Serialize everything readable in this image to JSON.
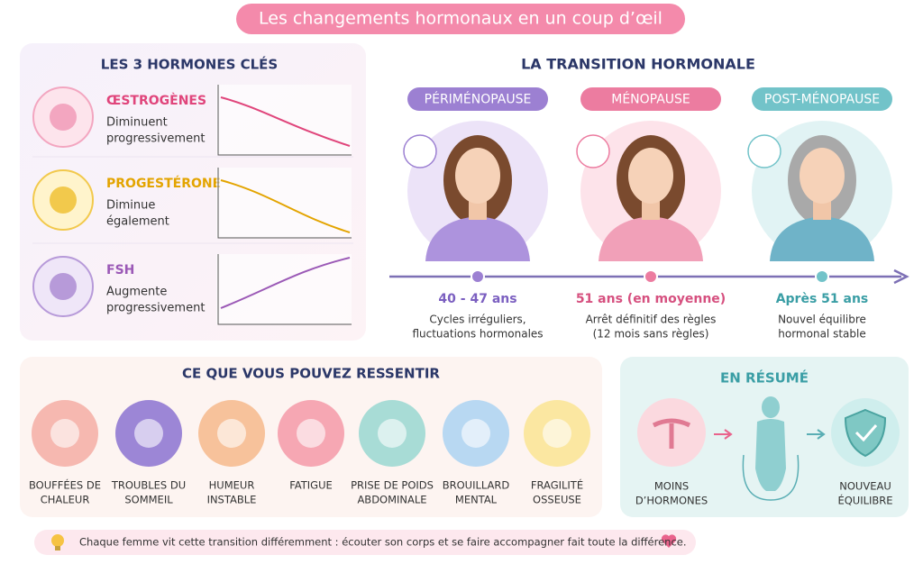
{
  "title": "Les changements hormonaux en un coup d’œil",
  "hormones": {
    "title": "LES 3 HORMONES CLÉS",
    "items": [
      {
        "name": "ŒSTROGÈNES",
        "description": [
          "Diminuent",
          "progressivement"
        ]
      },
      {
        "name": "PROGESTÉRONE",
        "description": [
          "Diminue",
          "également"
        ]
      },
      {
        "name": "FSH",
        "description": [
          "Augmente",
          "progressivement"
        ]
      }
    ]
  },
  "transition": {
    "title": "LA TRANSITION HORMONALE",
    "stages": [
      {
        "label": "PÉRIMÉNOPAUSE",
        "age": "40 - 47 ans",
        "description": [
          "Cycles irréguliers,",
          "fluctuations hormonales"
        ]
      },
      {
        "label": "MÉNOPAUSE",
        "age": "51 ans (en moyenne)",
        "description": [
          "Arrêt définitif des règles",
          "(12 mois sans règles)"
        ]
      },
      {
        "label": "POST-MÉNOPAUSE",
        "age": "Après 51 ans",
        "description": [
          "Nouvel équilibre",
          "hormonal stable"
        ]
      }
    ]
  },
  "symptoms": {
    "title": "CE QUE VOUS POUVEZ RESSENTIR",
    "items": [
      [
        "BOUFFÉES DE",
        "CHALEUR"
      ],
      [
        "TROUBLES DU",
        "SOMMEIL"
      ],
      [
        "HUMEUR",
        "INSTABLE"
      ],
      [
        "FATIGUE"
      ],
      [
        "PRISE DE POIDS",
        "ABDOMINALE"
      ],
      [
        "BROUILLARD",
        "MENTAL"
      ],
      [
        "FRAGILITÉ",
        "OSSEUSE"
      ]
    ]
  },
  "summary": {
    "title": "EN RÉSUMÉ",
    "from": [
      "MOINS",
      "D’HORMONES"
    ],
    "to": [
      "NOUVEAU",
      "ÉQUILIBRE"
    ]
  },
  "footer": "Chaque femme vit cette transition différemment : écouter son corps et se faire accompagner fait toute la différence."
}
